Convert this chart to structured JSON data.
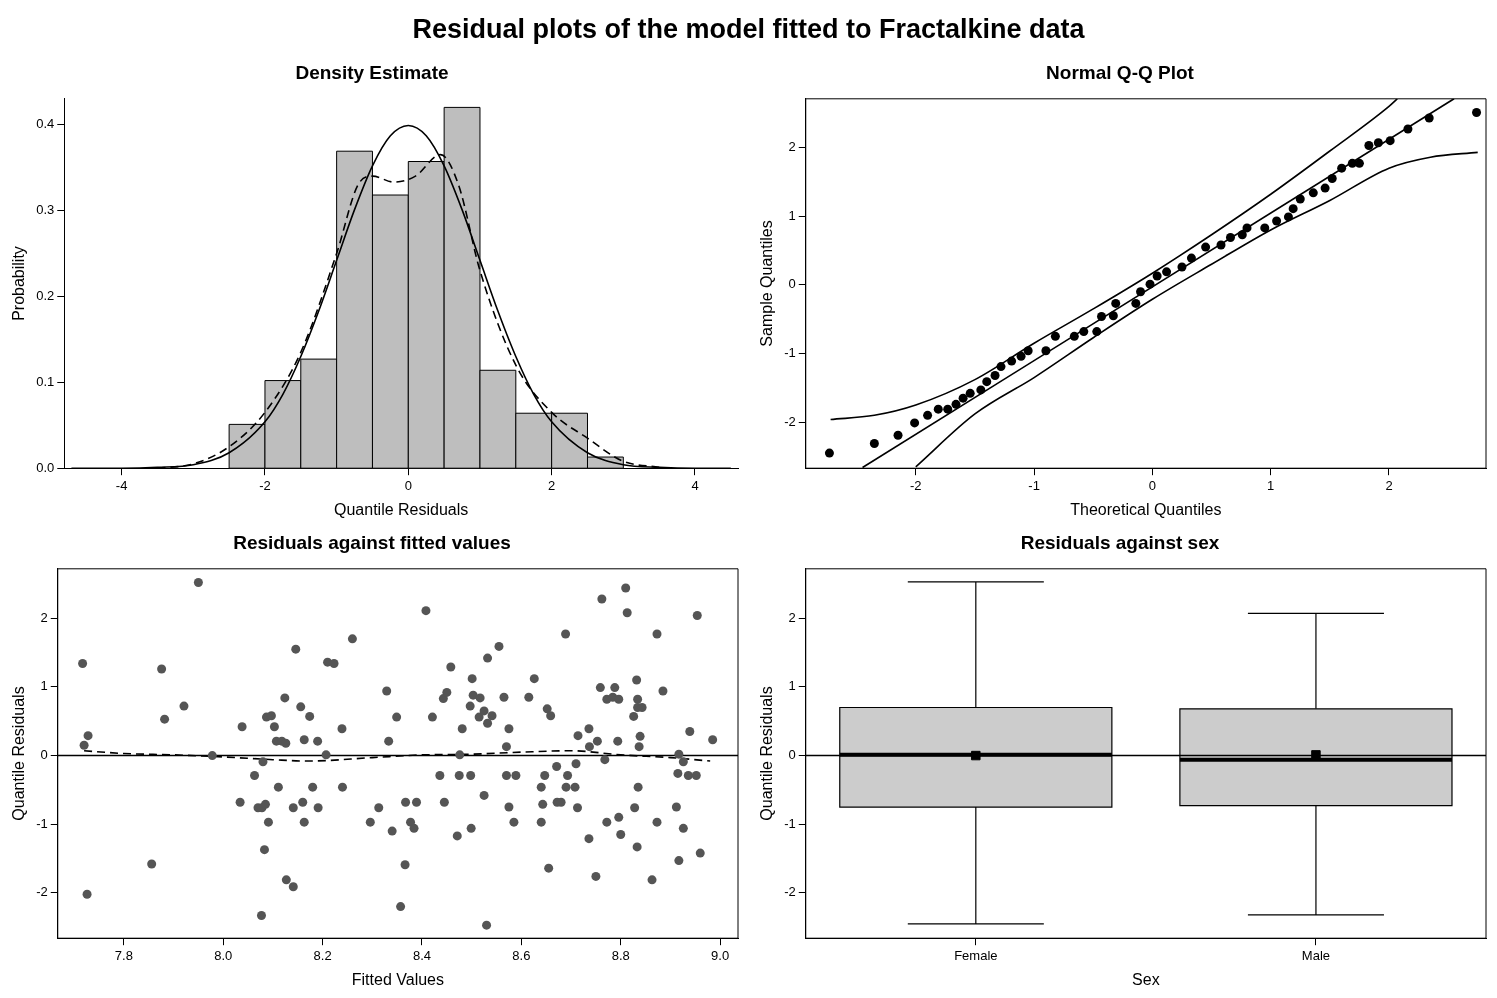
{
  "chart_data": [
    {
      "type": "other",
      "title": "Residual plots of the model fitted to Fractalkine data"
    },
    {
      "type": "histogram",
      "title": "Density Estimate",
      "xlabel": "Quantile Residuals",
      "ylabel": "Probability",
      "color": "#bebebe",
      "bins": [
        -2.5,
        -2.0,
        -1.5,
        -1.0,
        -0.5,
        0.0,
        0.5,
        1.0,
        1.5,
        2.0,
        2.5,
        3.0
      ],
      "values": [
        0.051,
        0.102,
        0.127,
        0.369,
        0.318,
        0.357,
        0.42,
        0.114,
        0.064,
        0.064,
        0.013
      ],
      "series": [
        {
          "type": "line",
          "color": "#000000",
          "line_style": "solid",
          "x": [
            -4.7,
            -4.0,
            -3.5,
            -3.0,
            -2.5,
            -2.0,
            -1.75,
            -1.5,
            -1.25,
            -1.0,
            -0.75,
            -0.5,
            -0.25,
            0.0,
            0.25,
            0.5,
            0.75,
            1.0,
            1.25,
            1.5,
            1.75,
            2.0,
            2.5,
            3.0,
            3.5,
            4.0,
            4.5
          ],
          "values": [
            0.0,
            0.0,
            0.001,
            0.004,
            0.018,
            0.054,
            0.086,
            0.13,
            0.183,
            0.242,
            0.301,
            0.352,
            0.387,
            0.399,
            0.387,
            0.352,
            0.301,
            0.242,
            0.183,
            0.13,
            0.086,
            0.054,
            0.018,
            0.004,
            0.001,
            0.0,
            0.0
          ]
        },
        {
          "type": "line",
          "color": "#000000",
          "line_style": "dashed",
          "x": [
            -3.5,
            -3.0,
            -2.5,
            -2.0,
            -1.5,
            -1.0,
            -0.7,
            -0.5,
            -0.2,
            0.1,
            0.45,
            0.7,
            1.0,
            1.5,
            2.0,
            2.5,
            3.0,
            3.5
          ],
          "values": [
            0.0,
            0.005,
            0.025,
            0.065,
            0.135,
            0.25,
            0.33,
            0.34,
            0.333,
            0.34,
            0.365,
            0.33,
            0.23,
            0.12,
            0.065,
            0.035,
            0.008,
            0.001
          ]
        }
      ],
      "xlim": [
        -4.8,
        4.6
      ],
      "xticks": [
        -4,
        -2,
        0,
        2,
        4
      ],
      "ylim": [
        0,
        0.43
      ],
      "yticks": [
        {
          "value": 0,
          "label": "0.0"
        },
        0.1,
        0.2,
        0.3,
        0.4
      ]
    },
    {
      "type": "scatter",
      "title": "Normal Q-Q Plot",
      "xlabel": "Theoretical Quantiles",
      "ylabel": "Sample Quantiles",
      "series": [
        {
          "type": "scatter",
          "color": "#000000",
          "marker": "circle",
          "x": [
            -2.73,
            -2.35,
            -2.15,
            -2.01,
            -1.9,
            -1.81,
            -1.73,
            -1.66,
            -1.6,
            -1.54,
            -1.45,
            -1.4,
            -1.33,
            -1.28,
            -1.19,
            -1.11,
            -1.05,
            -0.9,
            -0.82,
            -0.66,
            -0.58,
            -0.47,
            -0.43,
            -0.33,
            -0.31,
            -0.14,
            -0.1,
            -0.02,
            0.04,
            0.12,
            0.25,
            0.33,
            0.45,
            0.58,
            0.66,
            0.76,
            0.8,
            0.95,
            1.05,
            1.15,
            1.19,
            1.25,
            1.36,
            1.46,
            1.52,
            1.6,
            1.69,
            1.75,
            1.83,
            1.91,
            2.01,
            2.16,
            2.34,
            2.74
          ],
          "values": [
            -2.45,
            -2.31,
            -2.19,
            -2.01,
            -1.9,
            -1.81,
            -1.81,
            -1.74,
            -1.65,
            -1.58,
            -1.53,
            -1.41,
            -1.32,
            -1.19,
            -1.11,
            -1.04,
            -0.96,
            -0.96,
            -0.75,
            -0.75,
            -0.68,
            -0.68,
            -0.46,
            -0.45,
            -0.27,
            -0.27,
            -0.1,
            0.01,
            0.13,
            0.19,
            0.26,
            0.39,
            0.55,
            0.58,
            0.69,
            0.73,
            0.83,
            0.83,
            0.93,
            0.99,
            1.11,
            1.25,
            1.34,
            1.41,
            1.55,
            1.7,
            1.77,
            1.77,
            2.03,
            2.07,
            2.1,
            2.27,
            2.43,
            2.51
          ]
        },
        {
          "type": "line",
          "color": "#000000",
          "line_style": "solid",
          "x": [
            -2.45,
            2.55
          ],
          "values": [
            -2.66,
            2.71
          ]
        },
        {
          "type": "line",
          "color": "#000000",
          "line_style": "solid",
          "x": [
            -2.72,
            -2.35,
            -2.0,
            -1.5,
            -1.0,
            -0.5,
            0.0,
            0.5,
            1.0,
            1.5,
            2.0,
            2.07
          ],
          "values": [
            -1.96,
            -1.9,
            -1.75,
            -1.38,
            -0.85,
            -0.35,
            0.17,
            0.73,
            1.32,
            1.95,
            2.6,
            2.71
          ]
        },
        {
          "type": "line",
          "color": "#000000",
          "line_style": "solid",
          "x": [
            -2.0,
            -1.5,
            -1.0,
            -0.5,
            0.0,
            0.5,
            1.0,
            1.5,
            2.0,
            2.35,
            2.75
          ],
          "values": [
            -2.65,
            -1.88,
            -1.35,
            -0.77,
            -0.21,
            0.3,
            0.8,
            1.23,
            1.7,
            1.86,
            1.93
          ]
        }
      ],
      "xlim": [
        -2.93,
        2.82
      ],
      "xticks": [
        -2,
        -1,
        0,
        1,
        2
      ],
      "ylim": [
        -2.67,
        2.71
      ],
      "yticks": [
        -2,
        -1,
        0,
        1,
        2
      ]
    },
    {
      "type": "scatter",
      "title": "Residuals against fitted values",
      "xlabel": "Fitted Values",
      "ylabel": "Quantile Residuals",
      "series": [
        {
          "type": "scatter",
          "color": "#555555",
          "marker": "circle",
          "x": [
            7.717,
            7.72,
            7.728,
            7.726,
            7.856,
            7.876,
            7.882,
            7.921,
            7.95,
            7.978,
            8.034,
            8.038,
            8.063,
            8.07,
            8.077,
            8.078,
            8.08,
            8.083,
            8.085,
            8.087,
            8.091,
            8.097,
            8.103,
            8.107,
            8.111,
            8.118,
            8.124,
            8.126,
            8.127,
            8.141,
            8.141,
            8.146,
            8.156,
            8.16,
            8.163,
            8.163,
            8.174,
            8.18,
            8.19,
            8.191,
            8.207,
            8.21,
            8.223,
            8.239,
            8.24,
            8.26,
            8.296,
            8.313,
            8.329,
            8.333,
            8.34,
            8.349,
            8.357,
            8.366,
            8.367,
            8.377,
            8.384,
            8.389,
            8.408,
            8.421,
            8.436,
            8.443,
            8.445,
            8.45,
            8.458,
            8.471,
            8.475,
            8.476,
            8.481,
            8.497,
            8.498,
            8.499,
            8.501,
            8.503,
            8.515,
            8.517,
            8.525,
            8.525,
            8.53,
            8.532,
            8.532,
            8.541,
            8.555,
            8.565,
            8.57,
            8.57,
            8.575,
            8.575,
            8.585,
            8.589,
            8.615,
            8.626,
            8.64,
            8.64,
            8.643,
            8.647,
            8.652,
            8.655,
            8.659,
            8.671,
            8.672,
            8.68,
            8.689,
            8.69,
            8.693,
            8.708,
            8.71,
            8.713,
            8.714,
            8.736,
            8.736,
            8.737,
            8.75,
            8.753,
            8.762,
            8.759,
            8.768,
            8.772,
            8.772,
            8.784,
            8.788,
            8.794,
            8.796,
            8.796,
            8.8,
            8.81,
            8.813,
            8.826,
            8.828,
            8.832,
            8.833,
            8.834,
            8.834,
            8.835,
            8.837,
            8.839,
            8.843,
            8.863,
            8.873,
            8.873,
            8.885,
            8.912,
            8.915,
            8.917,
            8.917,
            8.926,
            8.926,
            8.939,
            8.936,
            8.952,
            8.954,
            8.96,
            8.985
          ],
          "values": [
            1.34,
            0.15,
            0.29,
            -2.02,
            -1.58,
            1.26,
            0.53,
            0.72,
            2.52,
            0.0,
            -0.68,
            0.42,
            -0.29,
            -0.76,
            -2.33,
            -0.76,
            -0.09,
            -1.37,
            -0.71,
            0.56,
            -0.97,
            0.58,
            0.42,
            0.21,
            -0.46,
            0.21,
            0.84,
            0.18,
            -1.81,
            -1.91,
            -0.76,
            1.55,
            0.71,
            -0.68,
            0.23,
            -0.97,
            0.57,
            -0.46,
            0.21,
            -0.76,
            0.01,
            1.36,
            1.34,
            0.39,
            -0.46,
            1.7,
            -0.97,
            -0.76,
            0.94,
            0.21,
            -1.1,
            0.56,
            -2.2,
            -1.59,
            -0.68,
            -0.97,
            -1.06,
            -0.68,
            2.11,
            0.56,
            -0.29,
            0.83,
            -0.68,
            0.92,
            1.29,
            -1.17,
            -0.29,
            0.01,
            0.39,
            0.72,
            -0.29,
            -1.06,
            1.12,
            0.88,
            0.56,
            0.84,
            -0.58,
            0.65,
            -2.47,
            0.47,
            1.42,
            0.58,
            1.59,
            0.85,
            0.13,
            -0.29,
            0.39,
            -0.75,
            -0.97,
            -0.29,
            0.85,
            1.12,
            -0.46,
            -0.97,
            -0.71,
            -0.29,
            0.68,
            -1.64,
            0.58,
            -0.16,
            -0.68,
            -0.68,
            1.77,
            -0.46,
            -0.29,
            -0.46,
            -0.12,
            -0.76,
            0.29,
            0.39,
            -1.21,
            0.13,
            -1.76,
            0.21,
            2.28,
            0.99,
            -0.06,
            -0.97,
            0.82,
            0.85,
            0.99,
            0.21,
            -0.9,
            0.82,
            -1.15,
            2.44,
            2.08,
            0.57,
            -0.76,
            1.1,
            -1.33,
            0.7,
            0.82,
            -0.46,
            0.13,
            0.28,
            0.7,
            -1.81,
            1.77,
            -0.97,
            0.94,
            -0.75,
            -0.26,
            0.02,
            -1.53,
            -0.09,
            -1.06,
            0.35,
            -0.29,
            -0.29,
            2.04,
            -1.42,
            0.23
          ]
        },
        {
          "type": "line",
          "color": "#000000",
          "line_style": "dashed",
          "x": [
            7.72,
            7.8,
            7.9,
            8.0,
            8.1,
            8.17,
            8.3,
            8.4,
            8.5,
            8.6,
            8.7,
            8.8,
            8.9,
            8.98
          ],
          "values": [
            0.07,
            0.03,
            0.01,
            -0.02,
            -0.06,
            -0.08,
            -0.03,
            0.01,
            0.02,
            0.05,
            0.07,
            0.01,
            -0.03,
            -0.08
          ]
        }
      ],
      "ref_lines": [
        {
          "axis": "y",
          "value": 0,
          "color": "#000000"
        }
      ],
      "xlim": [
        7.667,
        9.036
      ],
      "xticks": [
        7.8,
        {
          "value": 8,
          "label": "8.0"
        },
        8.2,
        8.4,
        8.6,
        8.8,
        {
          "value": 9,
          "label": "9.0"
        }
      ],
      "ylim": [
        -2.66,
        2.72
      ],
      "yticks": [
        -2,
        -1,
        0,
        1,
        2
      ]
    },
    {
      "type": "box",
      "title": "Residuals against sex",
      "xlabel": "Sex",
      "ylabel": "Quantile Residuals",
      "color": "#cccccc",
      "marker": "square",
      "categories": [
        "Female",
        "Male"
      ],
      "boxes": [
        {
          "low": -2.45,
          "q1": -0.75,
          "median": 0.01,
          "q3": 0.7,
          "high": 2.53,
          "mean": 0.0
        },
        {
          "low": -2.32,
          "q1": -0.73,
          "median": -0.06,
          "q3": 0.68,
          "high": 2.07,
          "mean": 0.01
        }
      ],
      "ref_lines": [
        {
          "axis": "y",
          "value": 0,
          "color": "#000000"
        }
      ],
      "ylim": [
        -2.66,
        2.72
      ],
      "yticks": [
        -2,
        -1,
        0,
        1,
        2
      ]
    }
  ]
}
